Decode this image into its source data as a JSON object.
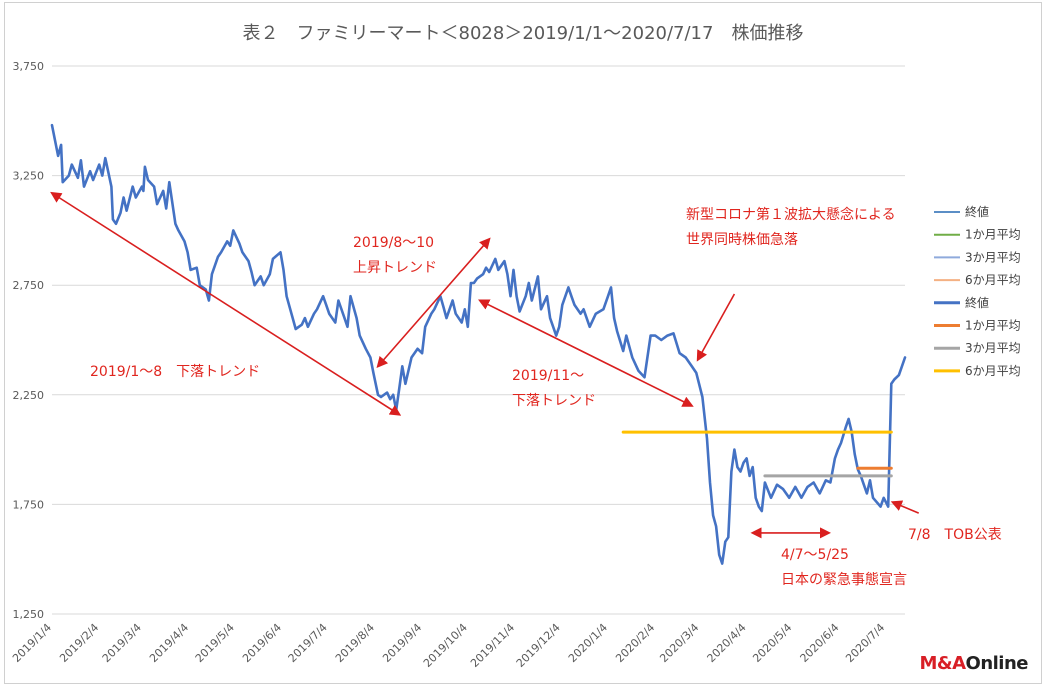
{
  "chart_data": {
    "type": "line",
    "title": "表２　ファミリーマート＜8028＞2019/1/1～2020/7/17　株価推移",
    "y_ticks": [
      "3,750",
      "3,250",
      "2,750",
      "2,250",
      "1,750",
      "1,250"
    ],
    "ylim": [
      1250,
      3750
    ],
    "x_ticks": [
      "2019/1/4",
      "2019/2/4",
      "2019/3/4",
      "2019/4/4",
      "2019/5/4",
      "2019/6/4",
      "2019/7/4",
      "2019/8/4",
      "2019/9/4",
      "2019/10/4",
      "2019/11/4",
      "2019/12/4",
      "2020/1/4",
      "2020/2/4",
      "2020/3/4",
      "2020/4/4",
      "2020/5/4",
      "2020/6/4",
      "2020/7/4"
    ],
    "xlim": [
      "2019/1/4",
      "2020/7/17"
    ],
    "grid": "horizontal",
    "legend_position": "right",
    "legend": [
      {
        "label": "終値",
        "color": "#5b8ec6"
      },
      {
        "label": "1か月平均",
        "color": "#70ad47"
      },
      {
        "label": "3か月平均",
        "color": "#8faadc"
      },
      {
        "label": "6か月平均",
        "color": "#f4b183"
      },
      {
        "label": "終値",
        "color": "#4472c4"
      },
      {
        "label": "1か月平均",
        "color": "#ed7d31"
      },
      {
        "label": "3か月平均",
        "color": "#a5a5a5"
      },
      {
        "label": "6か月平均",
        "color": "#ffc000"
      }
    ],
    "series": [
      {
        "name": "終値",
        "color": "#4472c4",
        "points": [
          [
            "2019/1/4",
            3480
          ],
          [
            "2019/1/8",
            3340
          ],
          [
            "2019/1/10",
            3390
          ],
          [
            "2019/1/11",
            3220
          ],
          [
            "2019/1/15",
            3250
          ],
          [
            "2019/1/17",
            3300
          ],
          [
            "2019/1/21",
            3240
          ],
          [
            "2019/1/23",
            3320
          ],
          [
            "2019/1/25",
            3200
          ],
          [
            "2019/1/29",
            3270
          ],
          [
            "2019/1/31",
            3230
          ],
          [
            "2019/2/4",
            3300
          ],
          [
            "2019/2/6",
            3250
          ],
          [
            "2019/2/8",
            3330
          ],
          [
            "2019/2/12",
            3200
          ],
          [
            "2019/2/13",
            3050
          ],
          [
            "2019/2/15",
            3030
          ],
          [
            "2019/2/18",
            3080
          ],
          [
            "2019/2/20",
            3150
          ],
          [
            "2019/2/22",
            3090
          ],
          [
            "2019/2/26",
            3200
          ],
          [
            "2019/2/28",
            3150
          ],
          [
            "2019/3/4",
            3200
          ],
          [
            "2019/3/5",
            3180
          ],
          [
            "2019/3/6",
            3290
          ],
          [
            "2019/3/8",
            3230
          ],
          [
            "2019/3/12",
            3200
          ],
          [
            "2019/3/14",
            3120
          ],
          [
            "2019/3/18",
            3180
          ],
          [
            "2019/3/20",
            3100
          ],
          [
            "2019/3/22",
            3220
          ],
          [
            "2019/3/26",
            3030
          ],
          [
            "2019/3/28",
            3000
          ],
          [
            "2019/4/1",
            2950
          ],
          [
            "2019/4/3",
            2900
          ],
          [
            "2019/4/5",
            2820
          ],
          [
            "2019/4/9",
            2830
          ],
          [
            "2019/4/11",
            2750
          ],
          [
            "2019/4/15",
            2730
          ],
          [
            "2019/4/17",
            2680
          ],
          [
            "2019/4/19",
            2800
          ],
          [
            "2019/4/23",
            2880
          ],
          [
            "2019/4/25",
            2900
          ],
          [
            "2019/4/29",
            2950
          ],
          [
            "2019/5/1",
            2930
          ],
          [
            "2019/5/3",
            3000
          ],
          [
            "2019/5/7",
            2940
          ],
          [
            "2019/5/9",
            2900
          ],
          [
            "2019/5/13",
            2860
          ],
          [
            "2019/5/15",
            2810
          ],
          [
            "2019/5/17",
            2750
          ],
          [
            "2019/5/21",
            2790
          ],
          [
            "2019/5/23",
            2750
          ],
          [
            "2019/5/27",
            2800
          ],
          [
            "2019/5/29",
            2870
          ],
          [
            "2019/6/3",
            2900
          ],
          [
            "2019/6/5",
            2820
          ],
          [
            "2019/6/7",
            2700
          ],
          [
            "2019/6/11",
            2600
          ],
          [
            "2019/6/13",
            2550
          ],
          [
            "2019/6/17",
            2570
          ],
          [
            "2019/6/19",
            2600
          ],
          [
            "2019/6/21",
            2560
          ],
          [
            "2019/6/25",
            2620
          ],
          [
            "2019/6/27",
            2640
          ],
          [
            "2019/7/1",
            2700
          ],
          [
            "2019/7/3",
            2660
          ],
          [
            "2019/7/5",
            2620
          ],
          [
            "2019/7/9",
            2580
          ],
          [
            "2019/7/11",
            2680
          ],
          [
            "2019/7/15",
            2600
          ],
          [
            "2019/7/17",
            2560
          ],
          [
            "2019/7/19",
            2700
          ],
          [
            "2019/7/23",
            2600
          ],
          [
            "2019/7/25",
            2520
          ],
          [
            "2019/7/29",
            2460
          ],
          [
            "2019/8/1",
            2420
          ],
          [
            "2019/8/3",
            2350
          ],
          [
            "2019/8/6",
            2250
          ],
          [
            "2019/8/8",
            2240
          ],
          [
            "2019/8/12",
            2260
          ],
          [
            "2019/8/14",
            2230
          ],
          [
            "2019/8/16",
            2250
          ],
          [
            "2019/8/18",
            2180
          ],
          [
            "2019/8/20",
            2280
          ],
          [
            "2019/8/22",
            2380
          ],
          [
            "2019/8/24",
            2300
          ],
          [
            "2019/8/28",
            2420
          ],
          [
            "2019/9/1",
            2460
          ],
          [
            "2019/9/4",
            2440
          ],
          [
            "2019/9/6",
            2560
          ],
          [
            "2019/9/10",
            2620
          ],
          [
            "2019/9/12",
            2640
          ],
          [
            "2019/9/16",
            2700
          ],
          [
            "2019/9/18",
            2650
          ],
          [
            "2019/9/20",
            2600
          ],
          [
            "2019/9/24",
            2680
          ],
          [
            "2019/9/26",
            2620
          ],
          [
            "2019/9/30",
            2580
          ],
          [
            "2019/10/2",
            2640
          ],
          [
            "2019/10/4",
            2560
          ],
          [
            "2019/10/6",
            2760
          ],
          [
            "2019/10/8",
            2760
          ],
          [
            "2019/10/10",
            2780
          ],
          [
            "2019/10/14",
            2800
          ],
          [
            "2019/10/16",
            2830
          ],
          [
            "2019/10/18",
            2810
          ],
          [
            "2019/10/22",
            2870
          ],
          [
            "2019/10/24",
            2820
          ],
          [
            "2019/10/28",
            2860
          ],
          [
            "2019/10/30",
            2800
          ],
          [
            "2019/11/1",
            2700
          ],
          [
            "2019/11/3",
            2820
          ],
          [
            "2019/11/5",
            2700
          ],
          [
            "2019/11/7",
            2630
          ],
          [
            "2019/11/11",
            2700
          ],
          [
            "2019/11/13",
            2760
          ],
          [
            "2019/11/15",
            2680
          ],
          [
            "2019/11/19",
            2790
          ],
          [
            "2019/11/21",
            2640
          ],
          [
            "2019/11/25",
            2700
          ],
          [
            "2019/11/27",
            2600
          ],
          [
            "2019/12/1",
            2520
          ],
          [
            "2019/12/3",
            2560
          ],
          [
            "2019/12/5",
            2660
          ],
          [
            "2019/12/9",
            2740
          ],
          [
            "2019/12/11",
            2700
          ],
          [
            "2019/12/13",
            2660
          ],
          [
            "2019/12/17",
            2620
          ],
          [
            "2019/12/19",
            2640
          ],
          [
            "2019/12/23",
            2560
          ],
          [
            "2019/12/27",
            2620
          ],
          [
            "2020/1/1",
            2640
          ],
          [
            "2020/1/4",
            2700
          ],
          [
            "2020/1/6",
            2740
          ],
          [
            "2020/1/8",
            2600
          ],
          [
            "2020/1/10",
            2540
          ],
          [
            "2020/1/14",
            2450
          ],
          [
            "2020/1/16",
            2520
          ],
          [
            "2020/1/20",
            2420
          ],
          [
            "2020/1/24",
            2360
          ],
          [
            "2020/1/28",
            2330
          ],
          [
            "2020/2/1",
            2520
          ],
          [
            "2020/2/4",
            2520
          ],
          [
            "2020/2/8",
            2500
          ],
          [
            "2020/2/12",
            2520
          ],
          [
            "2020/2/16",
            2530
          ],
          [
            "2020/2/20",
            2440
          ],
          [
            "2020/2/24",
            2420
          ],
          [
            "2020/2/28",
            2380
          ],
          [
            "2020/3/2",
            2350
          ],
          [
            "2020/3/6",
            2240
          ],
          [
            "2020/3/9",
            2050
          ],
          [
            "2020/3/11",
            1850
          ],
          [
            "2020/3/13",
            1700
          ],
          [
            "2020/3/15",
            1650
          ],
          [
            "2020/3/17",
            1520
          ],
          [
            "2020/3/19",
            1480
          ],
          [
            "2020/3/21",
            1580
          ],
          [
            "2020/3/23",
            1600
          ],
          [
            "2020/3/25",
            1900
          ],
          [
            "2020/3/27",
            2000
          ],
          [
            "2020/3/29",
            1920
          ],
          [
            "2020/3/31",
            1900
          ],
          [
            "2020/4/2",
            1940
          ],
          [
            "2020/4/4",
            1960
          ],
          [
            "2020/4/6",
            1880
          ],
          [
            "2020/4/8",
            1920
          ],
          [
            "2020/4/10",
            1780
          ],
          [
            "2020/4/12",
            1740
          ],
          [
            "2020/4/14",
            1720
          ],
          [
            "2020/4/16",
            1850
          ],
          [
            "2020/4/20",
            1780
          ],
          [
            "2020/4/24",
            1840
          ],
          [
            "2020/4/28",
            1820
          ],
          [
            "2020/5/2",
            1780
          ],
          [
            "2020/5/6",
            1830
          ],
          [
            "2020/5/10",
            1780
          ],
          [
            "2020/5/14",
            1830
          ],
          [
            "2020/5/18",
            1850
          ],
          [
            "2020/5/22",
            1800
          ],
          [
            "2020/5/26",
            1860
          ],
          [
            "2020/5/29",
            1850
          ],
          [
            "2020/6/1",
            1960
          ],
          [
            "2020/6/3",
            2000
          ],
          [
            "2020/6/5",
            2030
          ],
          [
            "2020/6/8",
            2100
          ],
          [
            "2020/6/10",
            2140
          ],
          [
            "2020/6/12",
            2080
          ],
          [
            "2020/6/14",
            1980
          ],
          [
            "2020/6/16",
            1910
          ],
          [
            "2020/6/18",
            1880
          ],
          [
            "2020/6/22",
            1800
          ],
          [
            "2020/6/24",
            1860
          ],
          [
            "2020/6/26",
            1780
          ],
          [
            "2020/7/1",
            1740
          ],
          [
            "2020/7/3",
            1780
          ],
          [
            "2020/7/6",
            1740
          ],
          [
            "2020/7/8",
            2300
          ],
          [
            "2020/7/10",
            2320
          ],
          [
            "2020/7/13",
            2340
          ],
          [
            "2020/7/17",
            2420
          ]
        ]
      },
      {
        "name": "1か月平均",
        "color": "#ed7d31",
        "points": [
          [
            "2020/6/16",
            1915
          ],
          [
            "2020/7/8",
            1915
          ]
        ]
      },
      {
        "name": "3か月平均",
        "color": "#a5a5a5",
        "points": [
          [
            "2020/4/16",
            1880
          ],
          [
            "2020/7/8",
            1880
          ]
        ]
      },
      {
        "name": "6か月平均",
        "color": "#ffc000",
        "points": [
          [
            "2020/1/14",
            2080
          ],
          [
            "2020/7/8",
            2080
          ]
        ]
      }
    ],
    "annotations": [
      {
        "lines": [
          "2019/1～8　下落トレンド"
        ],
        "color": "#e0261f"
      },
      {
        "lines": [
          "2019/8～10",
          "上昇トレンド"
        ],
        "color": "#e0261f"
      },
      {
        "lines": [
          "2019/11～",
          "下落トレンド"
        ],
        "color": "#e0261f"
      },
      {
        "lines": [
          "新型コロナ第１波拡大懸念による",
          "世界同時株価急落"
        ],
        "color": "#e0261f"
      },
      {
        "lines": [
          "4/7～5/25",
          "日本の緊急事態宣言"
        ],
        "color": "#e0261f"
      },
      {
        "lines": [
          "7/8　TOB公表"
        ],
        "color": "#e0261f"
      }
    ]
  },
  "brand": {
    "ma": "M&A",
    "ol": "Online"
  }
}
